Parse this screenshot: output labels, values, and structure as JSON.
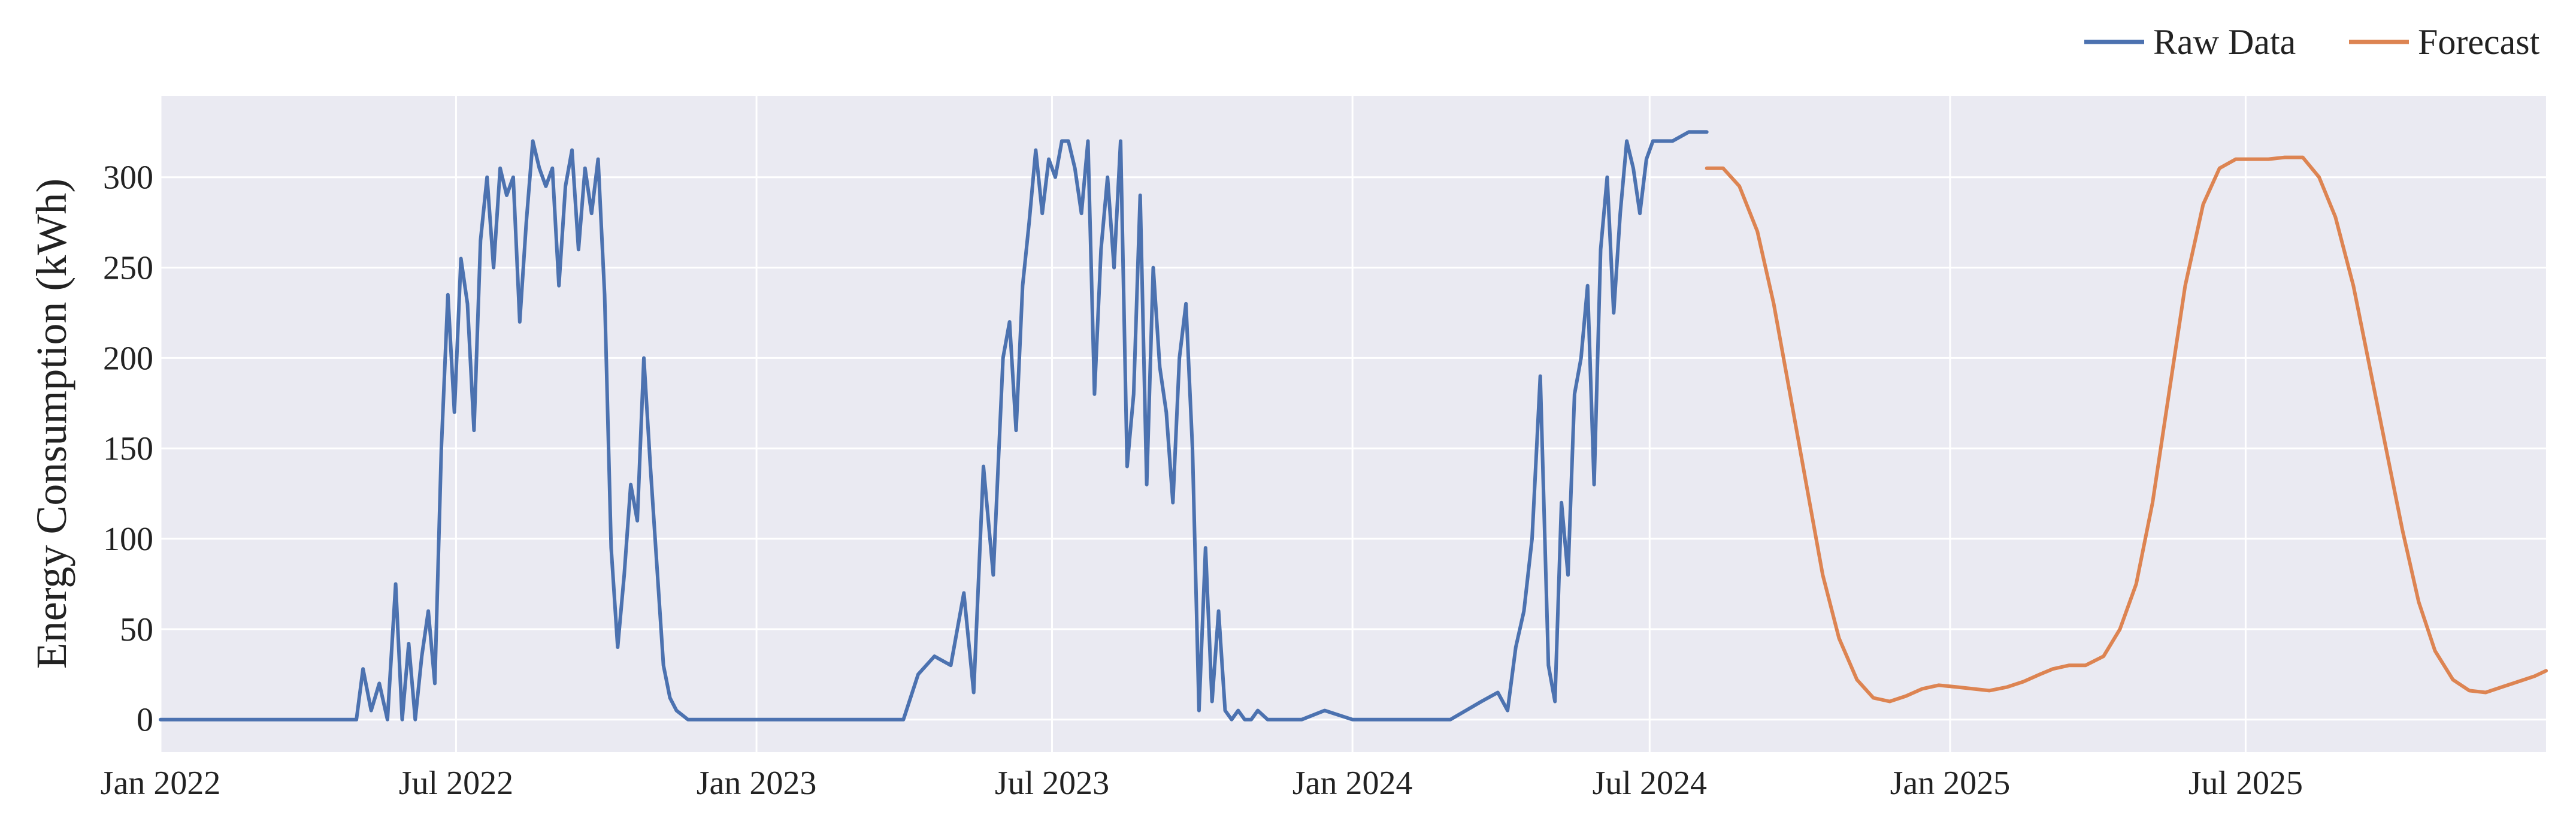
{
  "chart_data": {
    "type": "line",
    "title": "",
    "xlabel": "",
    "ylabel": "Energy Consumption (kWh)",
    "x_axis_type": "date",
    "xlim": [
      "2022-01-01",
      "2026-01-01"
    ],
    "ylim": [
      -18,
      345
    ],
    "x_ticks": [
      {
        "date": "2022-01-01",
        "label": "Jan 2022"
      },
      {
        "date": "2022-07-01",
        "label": "Jul 2022"
      },
      {
        "date": "2023-01-01",
        "label": "Jan 2023"
      },
      {
        "date": "2023-07-01",
        "label": "Jul 2023"
      },
      {
        "date": "2024-01-01",
        "label": "Jan 2024"
      },
      {
        "date": "2024-07-01",
        "label": "Jul 2024"
      },
      {
        "date": "2025-01-01",
        "label": "Jan 2025"
      },
      {
        "date": "2025-07-01",
        "label": "Jul 2025"
      }
    ],
    "y_ticks": [
      0,
      50,
      100,
      150,
      200,
      250,
      300
    ],
    "grid": true,
    "background_color": "#eaeaf2",
    "legend": {
      "placement": "top-right, outside above plot",
      "orientation": "horizontal"
    },
    "series": [
      {
        "name": "Raw Data",
        "color": "#4c72b0",
        "x": [
          "2022-01-01",
          "2022-02-01",
          "2022-03-01",
          "2022-04-01",
          "2022-05-01",
          "2022-05-05",
          "2022-05-10",
          "2022-05-15",
          "2022-05-20",
          "2022-05-25",
          "2022-05-29",
          "2022-06-02",
          "2022-06-06",
          "2022-06-10",
          "2022-06-14",
          "2022-06-18",
          "2022-06-22",
          "2022-06-26",
          "2022-06-30",
          "2022-07-04",
          "2022-07-08",
          "2022-07-12",
          "2022-07-16",
          "2022-07-20",
          "2022-07-24",
          "2022-07-28",
          "2022-08-01",
          "2022-08-05",
          "2022-08-09",
          "2022-08-13",
          "2022-08-17",
          "2022-08-21",
          "2022-08-25",
          "2022-08-29",
          "2022-09-02",
          "2022-09-06",
          "2022-09-10",
          "2022-09-14",
          "2022-09-18",
          "2022-09-22",
          "2022-09-26",
          "2022-09-30",
          "2022-10-04",
          "2022-10-08",
          "2022-10-12",
          "2022-10-16",
          "2022-10-20",
          "2022-10-24",
          "2022-10-28",
          "2022-11-01",
          "2022-11-05",
          "2022-11-09",
          "2022-11-13",
          "2022-11-20",
          "2022-12-01",
          "2023-01-01",
          "2023-02-01",
          "2023-03-01",
          "2023-04-01",
          "2023-04-10",
          "2023-04-20",
          "2023-04-30",
          "2023-05-08",
          "2023-05-14",
          "2023-05-20",
          "2023-05-26",
          "2023-06-01",
          "2023-06-05",
          "2023-06-09",
          "2023-06-13",
          "2023-06-17",
          "2023-06-21",
          "2023-06-25",
          "2023-06-29",
          "2023-07-03",
          "2023-07-07",
          "2023-07-11",
          "2023-07-15",
          "2023-07-19",
          "2023-07-23",
          "2023-07-27",
          "2023-07-31",
          "2023-08-04",
          "2023-08-08",
          "2023-08-12",
          "2023-08-16",
          "2023-08-20",
          "2023-08-24",
          "2023-08-28",
          "2023-09-01",
          "2023-09-05",
          "2023-09-09",
          "2023-09-13",
          "2023-09-17",
          "2023-09-21",
          "2023-09-25",
          "2023-09-29",
          "2023-10-03",
          "2023-10-07",
          "2023-10-11",
          "2023-10-15",
          "2023-10-19",
          "2023-10-23",
          "2023-10-27",
          "2023-10-31",
          "2023-11-04",
          "2023-11-10",
          "2023-11-20",
          "2023-12-01",
          "2023-12-15",
          "2024-01-01",
          "2024-02-01",
          "2024-03-01",
          "2024-03-20",
          "2024-03-30",
          "2024-04-05",
          "2024-04-10",
          "2024-04-15",
          "2024-04-20",
          "2024-04-25",
          "2024-04-30",
          "2024-05-04",
          "2024-05-08",
          "2024-05-12",
          "2024-05-16",
          "2024-05-20",
          "2024-05-24",
          "2024-05-28",
          "2024-06-01",
          "2024-06-05",
          "2024-06-09",
          "2024-06-13",
          "2024-06-17",
          "2024-06-21",
          "2024-06-25",
          "2024-06-29",
          "2024-07-03",
          "2024-07-07",
          "2024-07-15",
          "2024-07-25",
          "2024-08-05"
        ],
        "y": [
          0,
          0,
          0,
          0,
          0,
          28,
          5,
          20,
          0,
          75,
          0,
          42,
          0,
          35,
          60,
          20,
          150,
          235,
          170,
          255,
          230,
          160,
          265,
          300,
          250,
          305,
          290,
          300,
          220,
          275,
          320,
          305,
          295,
          305,
          240,
          295,
          315,
          260,
          305,
          280,
          310,
          235,
          95,
          40,
          80,
          130,
          110,
          200,
          140,
          85,
          30,
          12,
          5,
          0,
          0,
          0,
          0,
          0,
          0,
          25,
          35,
          30,
          70,
          15,
          140,
          80,
          200,
          220,
          160,
          240,
          275,
          315,
          280,
          310,
          300,
          320,
          320,
          305,
          280,
          320,
          180,
          260,
          300,
          250,
          320,
          140,
          180,
          290,
          130,
          250,
          195,
          170,
          120,
          200,
          230,
          150,
          5,
          95,
          10,
          60,
          5,
          0,
          5,
          0,
          0,
          5,
          0,
          0,
          0,
          5,
          0,
          0,
          0,
          10,
          15,
          5,
          40,
          60,
          100,
          190,
          30,
          10,
          120,
          80,
          180,
          200,
          240,
          130,
          260,
          300,
          225,
          280,
          320,
          305,
          280,
          310,
          320,
          320,
          320,
          325,
          325
        ]
      },
      {
        "name": "Forecast",
        "color": "#dd8452",
        "x": [
          "2024-08-05",
          "2024-08-15",
          "2024-08-25",
          "2024-09-05",
          "2024-09-15",
          "2024-09-25",
          "2024-10-05",
          "2024-10-15",
          "2024-10-25",
          "2024-11-05",
          "2024-11-15",
          "2024-11-25",
          "2024-12-05",
          "2024-12-15",
          "2024-12-25",
          "2025-01-05",
          "2025-01-15",
          "2025-01-25",
          "2025-02-05",
          "2025-02-15",
          "2025-02-25",
          "2025-03-05",
          "2025-03-15",
          "2025-03-25",
          "2025-04-05",
          "2025-04-15",
          "2025-04-25",
          "2025-05-05",
          "2025-05-15",
          "2025-05-25",
          "2025-06-05",
          "2025-06-15",
          "2025-06-25",
          "2025-07-05",
          "2025-07-15",
          "2025-07-25",
          "2025-08-05",
          "2025-08-15",
          "2025-08-25",
          "2025-09-05",
          "2025-09-15",
          "2025-09-25",
          "2025-10-05",
          "2025-10-15",
          "2025-10-25",
          "2025-11-05",
          "2025-11-15",
          "2025-11-25",
          "2025-12-05",
          "2025-12-15",
          "2025-12-25",
          "2026-01-01"
        ],
        "y": [
          305,
          305,
          295,
          270,
          230,
          180,
          130,
          80,
          45,
          22,
          12,
          10,
          13,
          17,
          19,
          18,
          17,
          16,
          18,
          21,
          25,
          28,
          30,
          30,
          35,
          50,
          75,
          120,
          180,
          240,
          285,
          305,
          310,
          310,
          310,
          311,
          311,
          300,
          278,
          240,
          195,
          150,
          105,
          65,
          38,
          22,
          16,
          15,
          18,
          21,
          24,
          27
        ]
      }
    ]
  }
}
